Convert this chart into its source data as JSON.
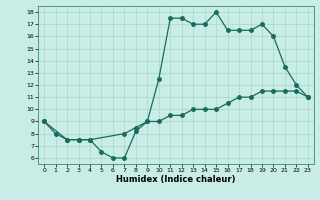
{
  "xlabel": "Humidex (Indice chaleur)",
  "xlim": [
    -0.5,
    23.5
  ],
  "ylim": [
    5.5,
    18.5
  ],
  "xticks": [
    0,
    1,
    2,
    3,
    4,
    5,
    6,
    7,
    8,
    9,
    10,
    11,
    12,
    13,
    14,
    15,
    16,
    17,
    18,
    19,
    20,
    21,
    22,
    23
  ],
  "yticks": [
    6,
    7,
    8,
    9,
    10,
    11,
    12,
    13,
    14,
    15,
    16,
    17,
    18
  ],
  "bg_color": "#c8ece6",
  "line_color": "#1a6b5a",
  "grid_color": "#aad4cc",
  "line1_x": [
    0,
    1,
    2,
    3,
    4,
    5,
    6,
    7,
    8,
    9,
    10,
    11,
    12,
    13,
    14,
    15,
    16,
    17,
    18,
    19,
    20,
    21,
    22,
    23
  ],
  "line1_y": [
    9.0,
    8.0,
    7.5,
    7.5,
    7.5,
    6.5,
    6.0,
    6.0,
    8.2,
    9.0,
    12.5,
    17.5,
    17.5,
    17.0,
    17.0,
    18.0,
    16.5,
    16.5,
    16.5,
    17.0,
    16.0,
    13.5,
    12.0,
    11.0
  ],
  "line2_x": [
    0,
    2,
    3,
    4,
    7,
    8,
    9,
    10,
    11,
    12,
    13,
    14,
    15,
    16,
    17,
    18,
    19,
    20,
    21,
    22,
    23
  ],
  "line2_y": [
    9.0,
    7.5,
    7.5,
    7.5,
    8.0,
    8.5,
    9.0,
    9.0,
    9.5,
    9.5,
    10.0,
    10.0,
    10.0,
    10.5,
    11.0,
    11.0,
    11.5,
    11.5,
    11.5,
    11.5,
    11.0
  ],
  "marker_size": 2.5,
  "linewidth": 0.9
}
